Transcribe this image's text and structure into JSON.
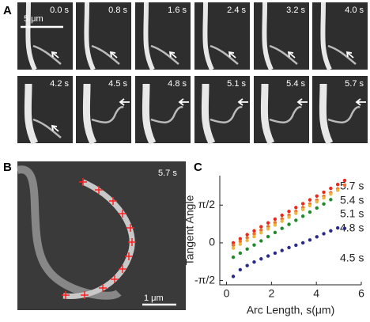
{
  "panel_labels": [
    "A",
    "B",
    "C"
  ],
  "panel_a": {
    "times": [
      "0.0 s",
      "0.8 s",
      "1.6 s",
      "2.4 s",
      "3.2 s",
      "4.0 s",
      "4.2 s",
      "4.5 s",
      "4.8 s",
      "5.1 s",
      "5.4 s",
      "5.7 s"
    ],
    "scale_bar": "5 μm"
  },
  "panel_b": {
    "time": "5.7 s",
    "scale_bar": "1 μm"
  },
  "chart_data": {
    "type": "scatter",
    "x_label": "Arc Length, s(μm)",
    "y_label": "Tangent Angle",
    "xlim": [
      -0.3,
      6
    ],
    "xticks": [
      0,
      2,
      4,
      6
    ],
    "ylim": [
      -1.75,
      2.8
    ],
    "yticks": [
      {
        "value": -1.5708,
        "label": "-π/2"
      },
      0,
      {
        "value": 1.5708,
        "label": "π/2"
      }
    ],
    "series": [
      {
        "name": "5.7 s",
        "color": "#e8291c",
        "x": [
          0.3,
          0.61,
          0.92,
          1.23,
          1.54,
          1.85,
          2.16,
          2.47,
          2.78,
          3.09,
          3.4,
          3.71,
          4.02,
          4.33,
          4.64,
          4.95,
          5.26
        ],
        "values": [
          0.0,
          0.17,
          0.34,
          0.5,
          0.67,
          0.83,
          0.99,
          1.15,
          1.31,
          1.47,
          1.63,
          1.79,
          1.95,
          2.11,
          2.27,
          2.43,
          2.6
        ]
      },
      {
        "name": "5.4 s",
        "color": "#f0702a",
        "x": [
          0.3,
          0.61,
          0.92,
          1.23,
          1.54,
          1.85,
          2.16,
          2.47,
          2.78,
          3.09,
          3.4,
          3.71,
          4.02,
          4.33,
          4.64,
          4.95,
          5.26
        ],
        "values": [
          -0.1,
          0.06,
          0.21,
          0.37,
          0.53,
          0.68,
          0.84,
          1.0,
          1.15,
          1.31,
          1.47,
          1.62,
          1.78,
          1.94,
          2.09,
          2.25,
          2.41
        ]
      },
      {
        "name": "5.1 s",
        "color": "#f0b440",
        "x": [
          0.3,
          0.61,
          0.92,
          1.23,
          1.54,
          1.85,
          2.16,
          2.47,
          2.78,
          3.09,
          3.4,
          3.71,
          4.02,
          4.33,
          4.64,
          4.95
        ],
        "values": [
          -0.22,
          -0.06,
          0.1,
          0.26,
          0.42,
          0.58,
          0.74,
          0.9,
          1.07,
          1.23,
          1.39,
          1.55,
          1.71,
          1.87,
          2.03,
          2.19
        ]
      },
      {
        "name": "4.8 s",
        "color": "#1f8a2a",
        "x": [
          0.3,
          0.61,
          0.92,
          1.23,
          1.54,
          1.85,
          2.16,
          2.47,
          2.78,
          3.09,
          3.4,
          3.71,
          4.02,
          4.33,
          4.64
        ],
        "values": [
          -0.6,
          -0.43,
          -0.26,
          -0.09,
          0.08,
          0.26,
          0.43,
          0.6,
          0.77,
          0.94,
          1.11,
          1.28,
          1.45,
          1.62,
          1.8
        ]
      },
      {
        "name": "4.5 s",
        "color": "#2a2a8a",
        "x": [
          0.3,
          0.61,
          0.92,
          1.23,
          1.54,
          1.85,
          2.16,
          2.47,
          2.78,
          3.09,
          3.4,
          3.71,
          4.02,
          4.33,
          4.64,
          4.95,
          5.26
        ],
        "values": [
          -1.4,
          -1.12,
          -0.95,
          -0.8,
          -0.67,
          -0.55,
          -0.43,
          -0.32,
          -0.2,
          -0.1,
          0.0,
          0.12,
          0.25,
          0.38,
          0.5,
          0.62,
          0.6
        ]
      }
    ]
  }
}
